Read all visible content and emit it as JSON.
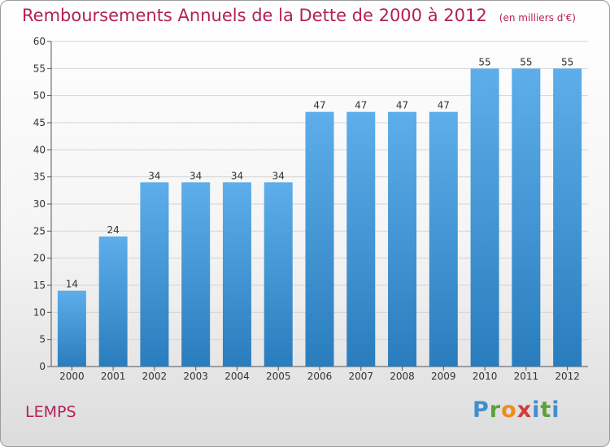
{
  "header": {
    "title": "Remboursements Annuels de la Dette de 2000 à 2012",
    "unit": "(en milliers d'€)"
  },
  "footer": {
    "place": "LEMPS",
    "brand": "Proxiti"
  },
  "colors": {
    "title": "#b3205a",
    "bar_top": "#5daeea",
    "bar_bottom": "#2a7dbd",
    "grid": "#d4d4d4"
  },
  "chart_data": {
    "type": "bar",
    "title": "Remboursements Annuels de la Dette de 2000 à 2012",
    "xlabel": "",
    "ylabel": "",
    "categories": [
      "2000",
      "2001",
      "2002",
      "2003",
      "2004",
      "2005",
      "2006",
      "2007",
      "2008",
      "2009",
      "2010",
      "2011",
      "2012"
    ],
    "values": [
      14,
      24,
      34,
      34,
      34,
      34,
      47,
      47,
      47,
      47,
      55,
      55,
      55
    ],
    "ylim": [
      0,
      60
    ],
    "yticks": [
      0,
      5,
      10,
      15,
      20,
      25,
      30,
      35,
      40,
      45,
      50,
      55,
      60
    ],
    "grid": true,
    "data_labels": true
  }
}
